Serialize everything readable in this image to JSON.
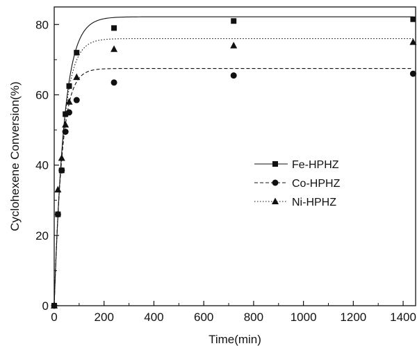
{
  "chart_data": {
    "type": "scatter",
    "xlabel": "Time(min)",
    "ylabel": "Cyclohexene Conversion(%)",
    "xlim": [
      0,
      1450
    ],
    "ylim": [
      0,
      85
    ],
    "x_ticks": [
      0,
      200,
      400,
      600,
      800,
      1000,
      1200,
      1400
    ],
    "y_ticks": [
      0,
      20,
      40,
      60,
      80
    ],
    "grid": false,
    "legend_position": "center-right",
    "series": [
      {
        "name": "Fe-HPHZ",
        "marker": "square",
        "line_style": "solid",
        "x": [
          0,
          15,
          30,
          45,
          60,
          90,
          240,
          720,
          1440
        ],
        "y": [
          0,
          26,
          38.5,
          54.5,
          62.5,
          72,
          79,
          81,
          81.5
        ],
        "fit": {
          "a": 82.2,
          "k": 0.025
        }
      },
      {
        "name": "Co-HPHZ",
        "marker": "circle",
        "line_style": "dashed",
        "x": [
          0,
          15,
          30,
          45,
          60,
          90,
          240,
          720,
          1440
        ],
        "y": [
          0,
          26,
          38.5,
          49.5,
          55,
          58.5,
          63.5,
          65.5,
          66
        ],
        "fit": {
          "a": 67.5,
          "k": 0.032
        }
      },
      {
        "name": "Ni-HPHZ",
        "marker": "triangle",
        "line_style": "dotted",
        "x": [
          0,
          15,
          30,
          45,
          60,
          90,
          240,
          720,
          1440
        ],
        "y": [
          0,
          33,
          42,
          51.5,
          58,
          65,
          73,
          74,
          75
        ],
        "fit": {
          "a": 76.0,
          "k": 0.028
        }
      }
    ]
  }
}
